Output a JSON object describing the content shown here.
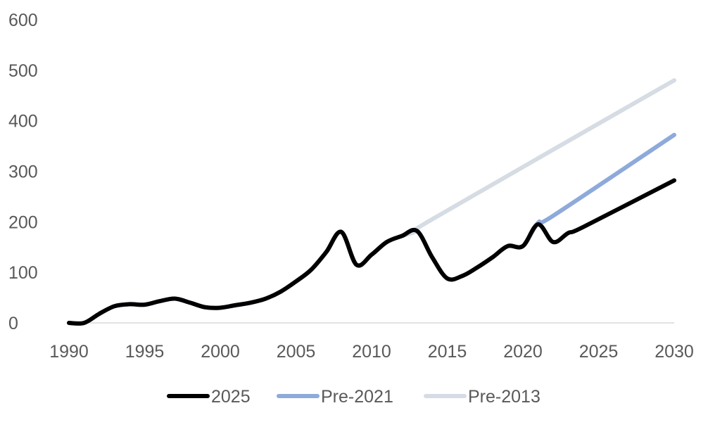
{
  "chart_data": {
    "type": "line",
    "title": "",
    "xlabel": "",
    "ylabel": "",
    "xlim": [
      1990,
      2030
    ],
    "ylim": [
      0,
      600
    ],
    "x_ticks": [
      "1990",
      "1995",
      "2000",
      "2005",
      "2010",
      "2015",
      "2020",
      "2025",
      "2030"
    ],
    "y_ticks": [
      "0",
      "100",
      "200",
      "300",
      "400",
      "500",
      "600"
    ],
    "grid": false,
    "legend_position": "bottom",
    "series": [
      {
        "name": "Pre-2013",
        "color": "#d6dce4",
        "points": [
          [
            1990,
            0
          ],
          [
            1991,
            0
          ],
          [
            1992,
            18
          ],
          [
            1993,
            33
          ],
          [
            1994,
            37
          ],
          [
            1995,
            36
          ],
          [
            1996,
            43
          ],
          [
            1997,
            48
          ],
          [
            1998,
            40
          ],
          [
            1999,
            31
          ],
          [
            2000,
            30
          ],
          [
            2001,
            35
          ],
          [
            2002,
            40
          ],
          [
            2003,
            48
          ],
          [
            2004,
            62
          ],
          [
            2005,
            82
          ],
          [
            2006,
            105
          ],
          [
            2007,
            140
          ],
          [
            2008,
            180
          ],
          [
            2009,
            115
          ],
          [
            2010,
            135
          ],
          [
            2011,
            160
          ],
          [
            2012,
            172
          ],
          [
            2013,
            182
          ],
          [
            2014,
            205
          ],
          [
            2030,
            480
          ]
        ]
      },
      {
        "name": "Pre-2021",
        "color": "#8eaadb",
        "points": [
          [
            1990,
            0
          ],
          [
            1991,
            0
          ],
          [
            1992,
            18
          ],
          [
            1993,
            33
          ],
          [
            1994,
            37
          ],
          [
            1995,
            36
          ],
          [
            1996,
            43
          ],
          [
            1997,
            48
          ],
          [
            1998,
            40
          ],
          [
            1999,
            31
          ],
          [
            2000,
            30
          ],
          [
            2001,
            35
          ],
          [
            2002,
            40
          ],
          [
            2003,
            48
          ],
          [
            2004,
            62
          ],
          [
            2005,
            82
          ],
          [
            2006,
            105
          ],
          [
            2007,
            140
          ],
          [
            2008,
            180
          ],
          [
            2009,
            115
          ],
          [
            2010,
            135
          ],
          [
            2011,
            160
          ],
          [
            2012,
            172
          ],
          [
            2013,
            182
          ],
          [
            2014,
            130
          ],
          [
            2015,
            88
          ],
          [
            2016,
            93
          ],
          [
            2017,
            110
          ],
          [
            2018,
            130
          ],
          [
            2019,
            152
          ],
          [
            2020,
            152
          ],
          [
            2021,
            198
          ],
          [
            2022,
            212
          ],
          [
            2030,
            372
          ]
        ]
      },
      {
        "name": "2025",
        "color": "#000000",
        "points": [
          [
            1990,
            0
          ],
          [
            1991,
            0
          ],
          [
            1992,
            18
          ],
          [
            1993,
            33
          ],
          [
            1994,
            37
          ],
          [
            1995,
            36
          ],
          [
            1996,
            43
          ],
          [
            1997,
            48
          ],
          [
            1998,
            40
          ],
          [
            1999,
            31
          ],
          [
            2000,
            30
          ],
          [
            2001,
            35
          ],
          [
            2002,
            40
          ],
          [
            2003,
            48
          ],
          [
            2004,
            62
          ],
          [
            2005,
            82
          ],
          [
            2006,
            105
          ],
          [
            2007,
            140
          ],
          [
            2008,
            180
          ],
          [
            2009,
            115
          ],
          [
            2010,
            135
          ],
          [
            2011,
            160
          ],
          [
            2012,
            172
          ],
          [
            2013,
            182
          ],
          [
            2014,
            130
          ],
          [
            2015,
            88
          ],
          [
            2016,
            93
          ],
          [
            2017,
            110
          ],
          [
            2018,
            130
          ],
          [
            2019,
            152
          ],
          [
            2020,
            152
          ],
          [
            2021,
            195
          ],
          [
            2022,
            160
          ],
          [
            2023,
            178
          ],
          [
            2024,
            190
          ],
          [
            2030,
            282
          ]
        ]
      }
    ],
    "legend": [
      {
        "label": "2025",
        "color": "#000000"
      },
      {
        "label": "Pre-2021",
        "color": "#8eaadb"
      },
      {
        "label": "Pre-2013",
        "color": "#d6dce4"
      }
    ]
  }
}
